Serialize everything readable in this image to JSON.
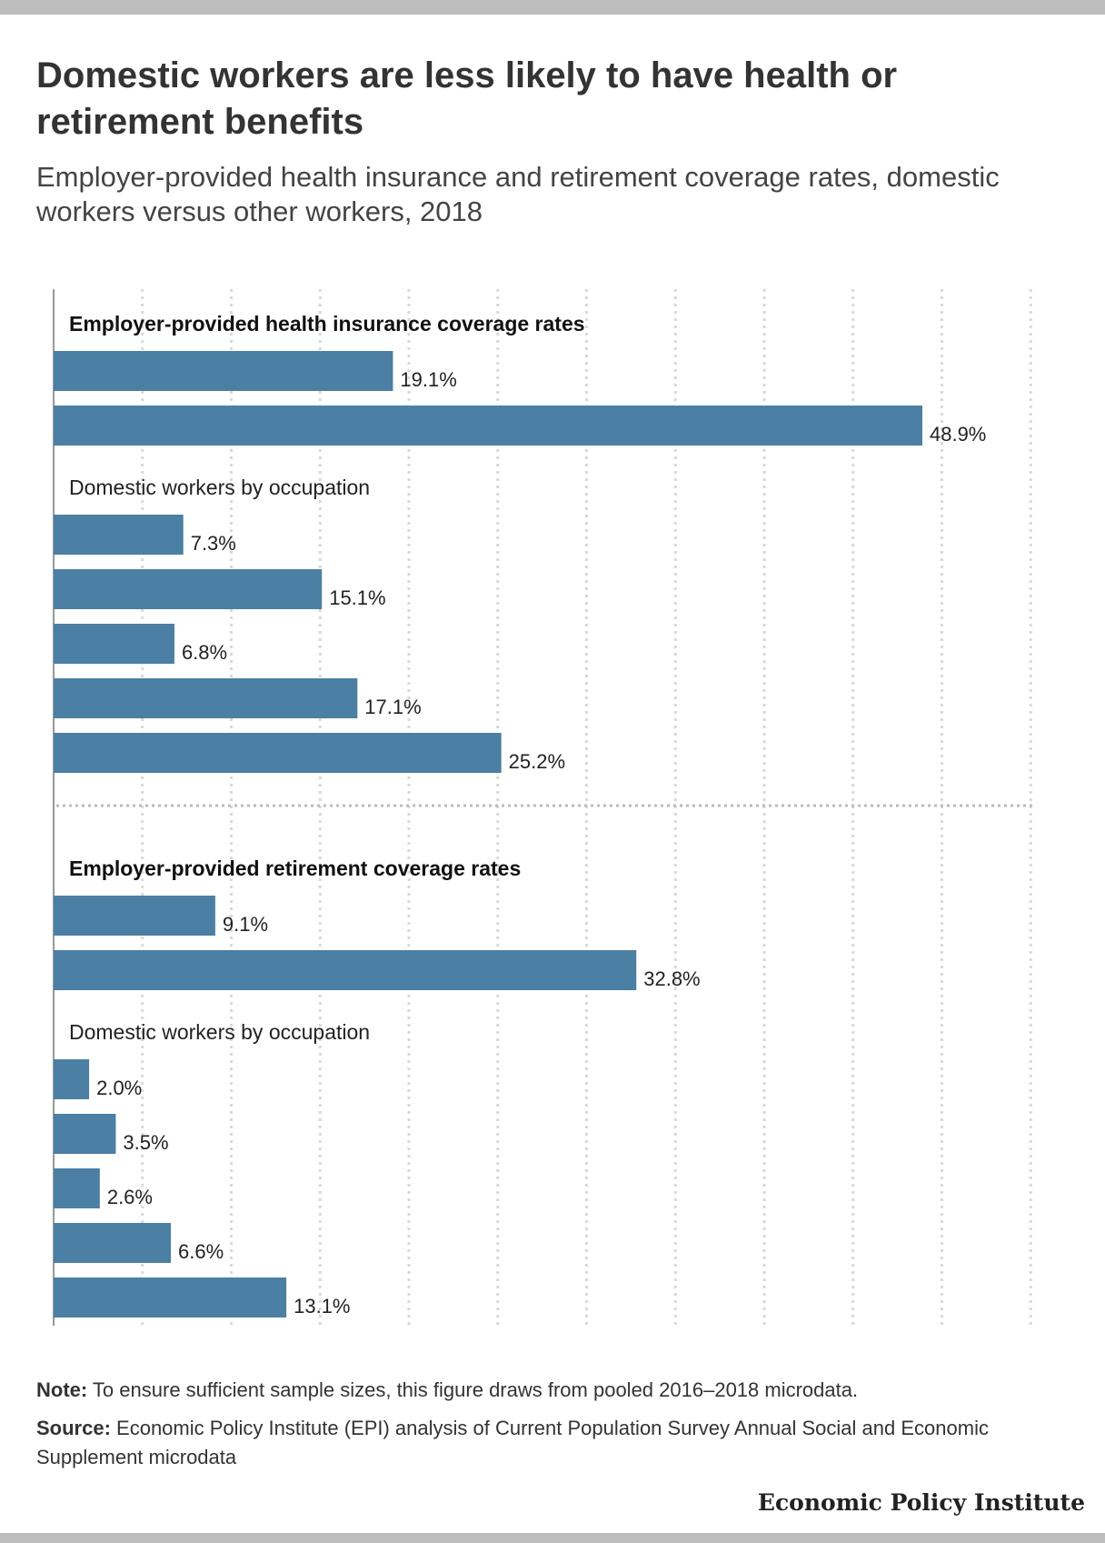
{
  "title": "Domestic workers are less likely to have health or retirement benefits",
  "subtitle": "Employer-provided health insurance and retirement coverage rates, domestic workers versus other workers, 2018",
  "note": {
    "lead": "Note:",
    "text": " To ensure sufficient sample sizes, this figure draws from pooled 2016–2018 microdata."
  },
  "source": {
    "lead": "Source:",
    "text": " Economic Policy Institute (EPI) analysis of Current Population Survey Annual Social and Economic Supplement microdata"
  },
  "brand": "Economic Policy Institute",
  "colors": {
    "bar": "#4b7fa3",
    "grid": "#d9d9d9",
    "axis": "#999999",
    "divider": "#bbbbbb"
  },
  "chart_data": {
    "type": "bar",
    "orientation": "horizontal",
    "xlim": [
      0,
      55
    ],
    "grid": true,
    "groups": [
      {
        "heading": "Employer-provided health insurance coverage rates",
        "values": [
          19.1,
          48.9
        ],
        "labels": [
          "19.1%",
          "48.9%"
        ],
        "subheading": "Domestic workers by occupation",
        "sub_values": [
          7.3,
          15.1,
          6.8,
          17.1,
          25.2
        ],
        "sub_labels": [
          "7.3%",
          "15.1%",
          "6.8%",
          "17.1%",
          "25.2%"
        ]
      },
      {
        "heading": "Employer-provided retirement coverage rates",
        "values": [
          9.1,
          32.8
        ],
        "labels": [
          "9.1%",
          "32.8%"
        ],
        "subheading": "Domestic workers by occupation",
        "sub_values": [
          2.0,
          3.5,
          2.6,
          6.6,
          13.1
        ],
        "sub_labels": [
          "2.0%",
          "3.5%",
          "2.6%",
          "6.6%",
          "13.1%"
        ]
      }
    ]
  }
}
